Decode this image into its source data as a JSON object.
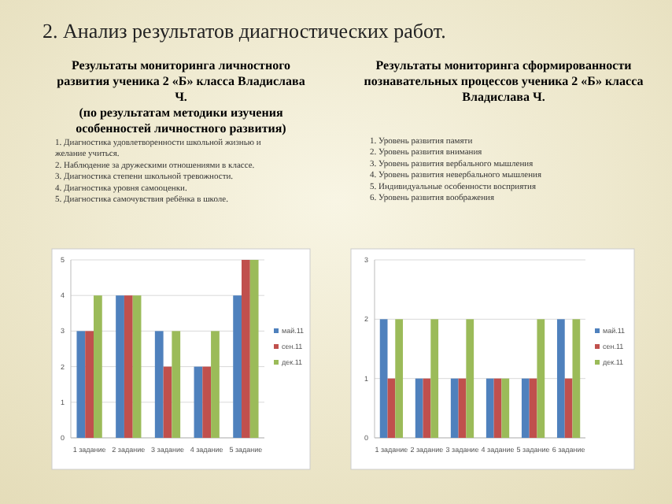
{
  "chart_data": [
    {
      "type": "bar",
      "title": "Результаты мониторинга личностного развития ученика 2 «Б» класса Владислава Ч.",
      "subtitle": "(по результатам методики изучения особенностей личностного развития)",
      "annotations": [
        "2. Анализ результатов диагностических работ.",
        "1. Диагностика удовлетворенности школьной жизнью и желание учиться.",
        "2. Наблюдение за дружескими отношениями в классе.",
        "3. Диагностика степени школьной тревожности.",
        "4. Диагностика уровня самооценки.",
        "5. Диагностика самочувствия ребёнка в школе."
      ],
      "categories": [
        "1 задание",
        "2 задание",
        "3 задание",
        "4 задание",
        "5 задание"
      ],
      "series": [
        {
          "name": "май.11",
          "color": "#4f81bd",
          "values": [
            3,
            4,
            3,
            2,
            4
          ]
        },
        {
          "name": "сен.11",
          "color": "#c0504d",
          "values": [
            3,
            4,
            2,
            2,
            5
          ]
        },
        {
          "name": "дек.11",
          "color": "#9bbb59",
          "values": [
            4,
            4,
            3,
            3,
            5
          ]
        }
      ],
      "ylim": [
        0,
        5
      ],
      "yticks": [
        0,
        1,
        2,
        3,
        4,
        5
      ],
      "grid": "y",
      "legend": "right"
    },
    {
      "type": "bar",
      "title": "Результаты мониторинга сформированности познавательных процессов ученика 2 «Б» класса Владислава Ч.",
      "annotations": [
        "1. Уровень развития памяти",
        "2. Уровень развития внимания",
        "3. Уровень развития вербального мышления",
        "4. Уровень развития невербального мышления",
        "5. Индивидуальные особенности восприятия",
        "6. Уровень развития воображения"
      ],
      "categories": [
        "1 задание",
        "2 задание",
        "3 задание",
        "4 задание",
        "5 задание",
        "6 задание"
      ],
      "series": [
        {
          "name": "май.11",
          "color": "#4f81bd",
          "values": [
            2,
            1,
            1,
            1,
            1,
            2
          ]
        },
        {
          "name": "сен.11",
          "color": "#c0504d",
          "values": [
            1,
            1,
            1,
            1,
            1,
            1
          ]
        },
        {
          "name": "дек.11",
          "color": "#9bbb59",
          "values": [
            2,
            2,
            2,
            1,
            2,
            2
          ]
        }
      ],
      "ylim": [
        0,
        3
      ],
      "yticks": [
        0,
        1,
        2,
        3
      ],
      "grid": "y",
      "legend": "right"
    }
  ]
}
